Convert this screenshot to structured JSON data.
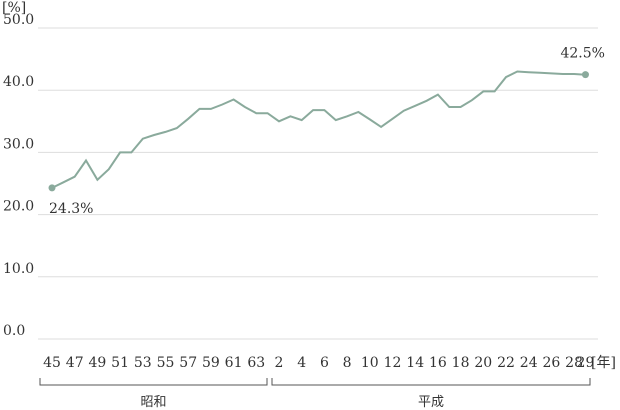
{
  "chart_data": {
    "type": "line",
    "y_unit_label": "[%]",
    "x_unit_label": "[年]",
    "ylim": [
      0,
      50
    ],
    "y_ticks": [
      "50.0",
      "40.0",
      "30.0",
      "20.0",
      "10.0",
      "0.0"
    ],
    "grid": true,
    "line_color": "#8aaa9c",
    "gridline_color": "#dddddd",
    "x": [
      45,
      46,
      47,
      48,
      49,
      50,
      51,
      52,
      53,
      54,
      55,
      56,
      57,
      58,
      59,
      60,
      61,
      62,
      63,
      64,
      2,
      3,
      4,
      5,
      6,
      7,
      8,
      9,
      10,
      11,
      12,
      13,
      14,
      15,
      16,
      17,
      18,
      19,
      20,
      21,
      22,
      23,
      24,
      25,
      26,
      27,
      28,
      29
    ],
    "values": [
      24.3,
      25.2,
      26.1,
      28.7,
      25.6,
      27.3,
      30.0,
      30.0,
      32.2,
      32.8,
      33.3,
      33.9,
      35.4,
      37.0,
      37.0,
      37.7,
      38.5,
      37.3,
      36.3,
      36.3,
      35.0,
      35.8,
      35.2,
      36.8,
      36.8,
      35.2,
      35.8,
      36.5,
      35.3,
      34.1,
      35.4,
      36.7,
      37.5,
      38.3,
      39.3,
      37.3,
      37.3,
      38.4,
      39.8,
      39.8,
      42.1,
      43.0,
      42.9,
      42.8,
      42.7,
      42.6,
      42.6,
      42.5
    ],
    "x_ticks": [
      "45",
      "47",
      "49",
      "51",
      "53",
      "55",
      "57",
      "59",
      "61",
      "63",
      "2",
      "4",
      "6",
      "8",
      "10",
      "12",
      "14",
      "16",
      "18",
      "20",
      "22",
      "24",
      "26",
      "28",
      "29"
    ],
    "annotations": [
      {
        "label": "24.3%",
        "value": 24.3
      },
      {
        "label": "42.5%",
        "value": 42.5
      }
    ],
    "eras": [
      {
        "label": "昭和"
      },
      {
        "label": "平成"
      }
    ]
  }
}
